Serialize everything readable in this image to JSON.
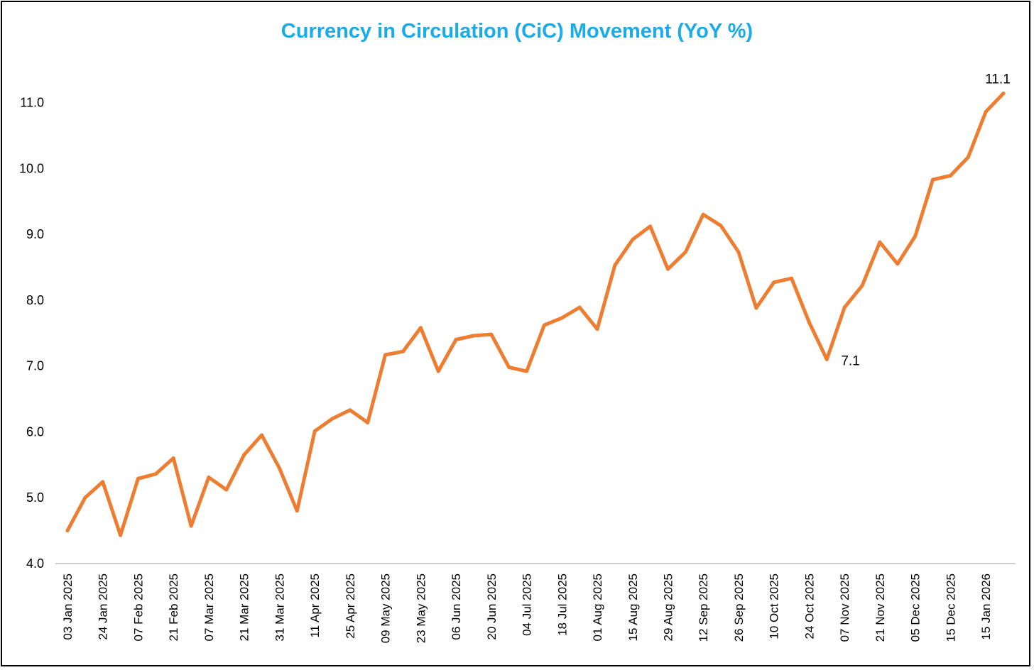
{
  "chart_data": {
    "type": "line",
    "title": "Currency in Circulation (CiC) Movement (YoY %)",
    "xlabel": "",
    "ylabel": "",
    "ylim": [
      4.0,
      11.0
    ],
    "yticks": [
      "4.0",
      "5.0",
      "6.0",
      "7.0",
      "8.0",
      "9.0",
      "10.0",
      "11.0"
    ],
    "grid": false,
    "x_tick_labels": [
      "03 Jan 2025",
      "24 Jan 2025",
      "07 Feb 2025",
      "21 Feb 2025",
      "07 Mar 2025",
      "21 Mar 2025",
      "31 Mar 2025",
      "11 Apr 2025",
      "25 Apr 2025",
      "09 May 2025",
      "23 May 2025",
      "06 Jun 2025",
      "20 Jun 2025",
      "04 Jul 2025",
      "18 Jul 2025",
      "01 Aug 2025",
      "15 Aug 2025",
      "29 Aug 2025",
      "12 Sep 2025",
      "26 Sep 2025",
      "10 Oct 2025",
      "24 Oct 2025",
      "07 Nov 2025",
      "21 Nov 2025",
      "05 Dec 2025",
      "15 Dec 2025",
      "15 Jan 2026"
    ],
    "series": [
      {
        "name": "CiC YoY %",
        "color": "#ED7D31",
        "values": [
          4.5,
          5.0,
          5.24,
          4.43,
          5.29,
          5.36,
          5.6,
          4.57,
          5.31,
          5.12,
          5.65,
          5.95,
          5.45,
          4.8,
          6.01,
          6.2,
          6.33,
          6.14,
          7.17,
          7.22,
          7.58,
          6.92,
          7.4,
          7.46,
          7.48,
          6.98,
          6.92,
          7.62,
          7.73,
          7.89,
          7.56,
          8.53,
          8.92,
          9.12,
          8.47,
          8.73,
          9.3,
          9.13,
          8.73,
          7.88,
          8.27,
          8.33,
          7.66,
          7.1,
          7.89,
          8.22,
          8.88,
          8.55,
          8.97,
          9.83,
          9.89,
          10.17,
          10.86,
          11.14
        ]
      }
    ],
    "data_labels": [
      {
        "index": 43,
        "text": "7.1"
      },
      {
        "index": 53,
        "text": "11.1"
      }
    ]
  },
  "colors": {
    "title": "#1AABE8",
    "line": "#ED7D31",
    "axis": "#000000"
  }
}
